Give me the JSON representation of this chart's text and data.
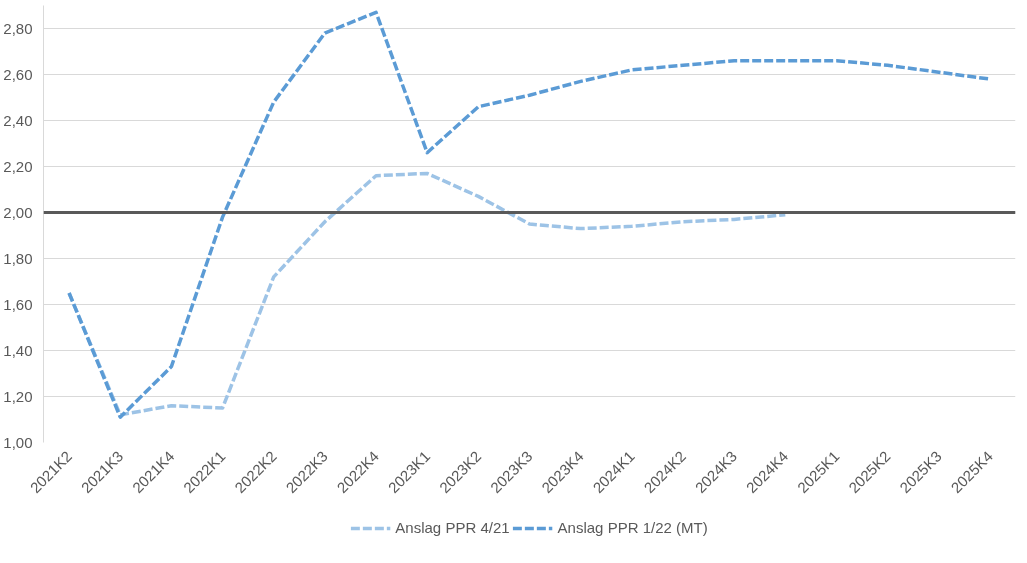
{
  "chart_data": {
    "type": "line",
    "categories": [
      "2021K2",
      "2021K3",
      "2021K4",
      "2022K1",
      "2022K2",
      "2022K3",
      "2022K4",
      "2023K1",
      "2023K2",
      "2023K3",
      "2023K4",
      "2024K1",
      "2024K2",
      "2024K3",
      "2024K4",
      "2025K1",
      "2025K2",
      "2025K3",
      "2025K4"
    ],
    "series": [
      {
        "name": "Anslag PPR 4/21",
        "color": "#9dc3e6",
        "values": [
          1.65,
          1.12,
          1.16,
          1.15,
          1.72,
          1.96,
          2.16,
          2.17,
          2.07,
          1.95,
          1.93,
          1.94,
          1.96,
          1.97,
          1.99,
          null,
          null,
          null,
          null
        ]
      },
      {
        "name": "Anslag PPR 1/22 (MT)",
        "color": "#5b9bd5",
        "values": [
          1.65,
          1.11,
          1.33,
          1.98,
          2.48,
          2.78,
          2.87,
          2.26,
          2.46,
          2.51,
          2.57,
          2.62,
          2.64,
          2.66,
          2.66,
          2.66,
          2.64,
          2.61,
          2.58
        ]
      }
    ],
    "ylim": [
      1.0,
      2.9
    ],
    "yticks": [
      {
        "value": 1.0,
        "label": "1,00"
      },
      {
        "value": 1.2,
        "label": "1,20"
      },
      {
        "value": 1.4,
        "label": "1,40"
      },
      {
        "value": 1.6,
        "label": "1,60"
      },
      {
        "value": 1.8,
        "label": "1,80"
      },
      {
        "value": 2.0,
        "label": "2,00"
      },
      {
        "value": 2.2,
        "label": "2,20"
      },
      {
        "value": 2.4,
        "label": "2,40"
      },
      {
        "value": 2.6,
        "label": "2,60"
      },
      {
        "value": 2.8,
        "label": "2,80"
      }
    ],
    "ref_lines": [
      {
        "axis": "y",
        "value": 2.0,
        "color": "#595959"
      }
    ],
    "grid": "y",
    "legend": "bottom",
    "line_style": "dashed",
    "marker": "none"
  }
}
